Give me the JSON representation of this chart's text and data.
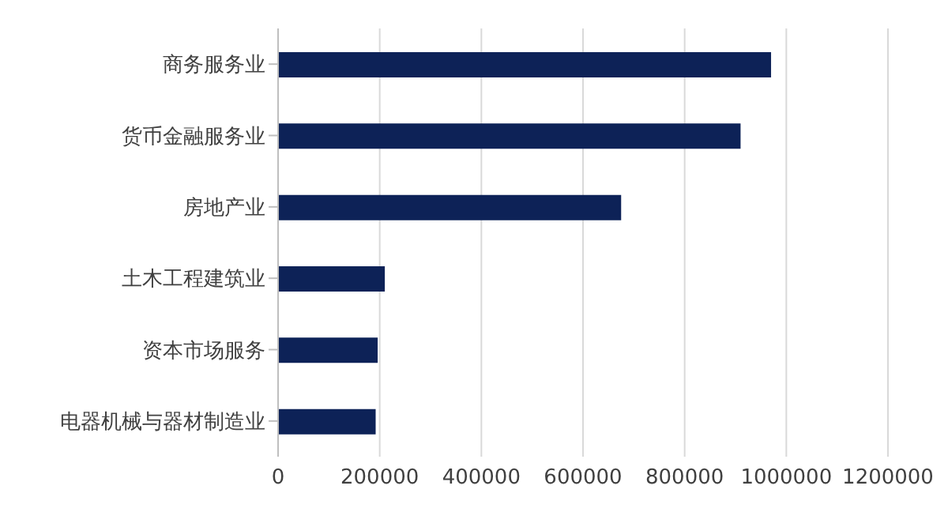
{
  "chart_data": {
    "type": "bar",
    "orientation": "horizontal",
    "categories": [
      "商务服务业",
      "货币金融服务业",
      "房地产业",
      "土木工程建筑业",
      "资本市场服务",
      "电器机械与器材制造业"
    ],
    "values": [
      970000,
      910000,
      675000,
      210000,
      196000,
      192000
    ],
    "color": "#0d2257",
    "xlim": [
      0,
      1200000
    ],
    "xticks": [
      0,
      200000,
      400000,
      600000,
      800000,
      1000000,
      1200000
    ],
    "grid": "x"
  }
}
